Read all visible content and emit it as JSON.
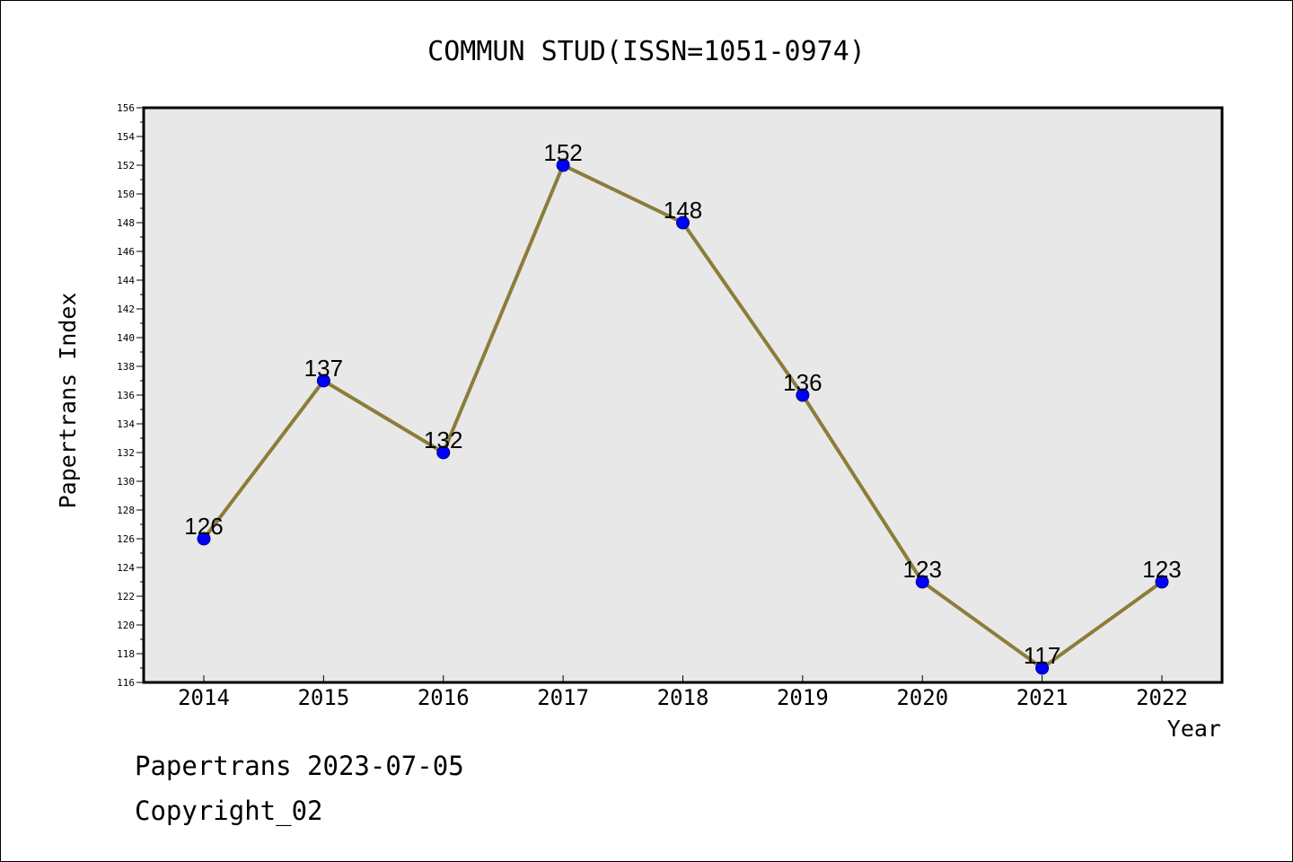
{
  "chart_data": {
    "type": "line",
    "title": "COMMUN STUD(ISSN=1051-0974)",
    "xlabel": "Year",
    "ylabel": "Papertrans Index",
    "categories": [
      "2014",
      "2015",
      "2016",
      "2017",
      "2018",
      "2019",
      "2020",
      "2021",
      "2022"
    ],
    "series": [
      {
        "values": [
          126,
          137,
          132,
          152,
          148,
          136,
          123,
          117,
          123
        ]
      }
    ],
    "data_labels": [
      "126",
      "137",
      "132",
      "152",
      "148",
      "136",
      "123",
      "117",
      "123"
    ],
    "ylim": [
      116,
      156
    ],
    "yticks": [
      "116",
      "118",
      "120",
      "122",
      "124",
      "126",
      "128",
      "130",
      "132",
      "134",
      "136",
      "138",
      "140",
      "142",
      "144",
      "146",
      "148",
      "150",
      "152",
      "154",
      "156"
    ],
    "grid": false,
    "legend": "none",
    "colors": {
      "plot_background": "#e8e8e8",
      "line": "#8b7d3a",
      "marker": "#0000ff",
      "marker_edge": "#000080"
    }
  },
  "footer": {
    "line1": "Papertrans 2023-07-05",
    "line2": "Copyright_02"
  }
}
